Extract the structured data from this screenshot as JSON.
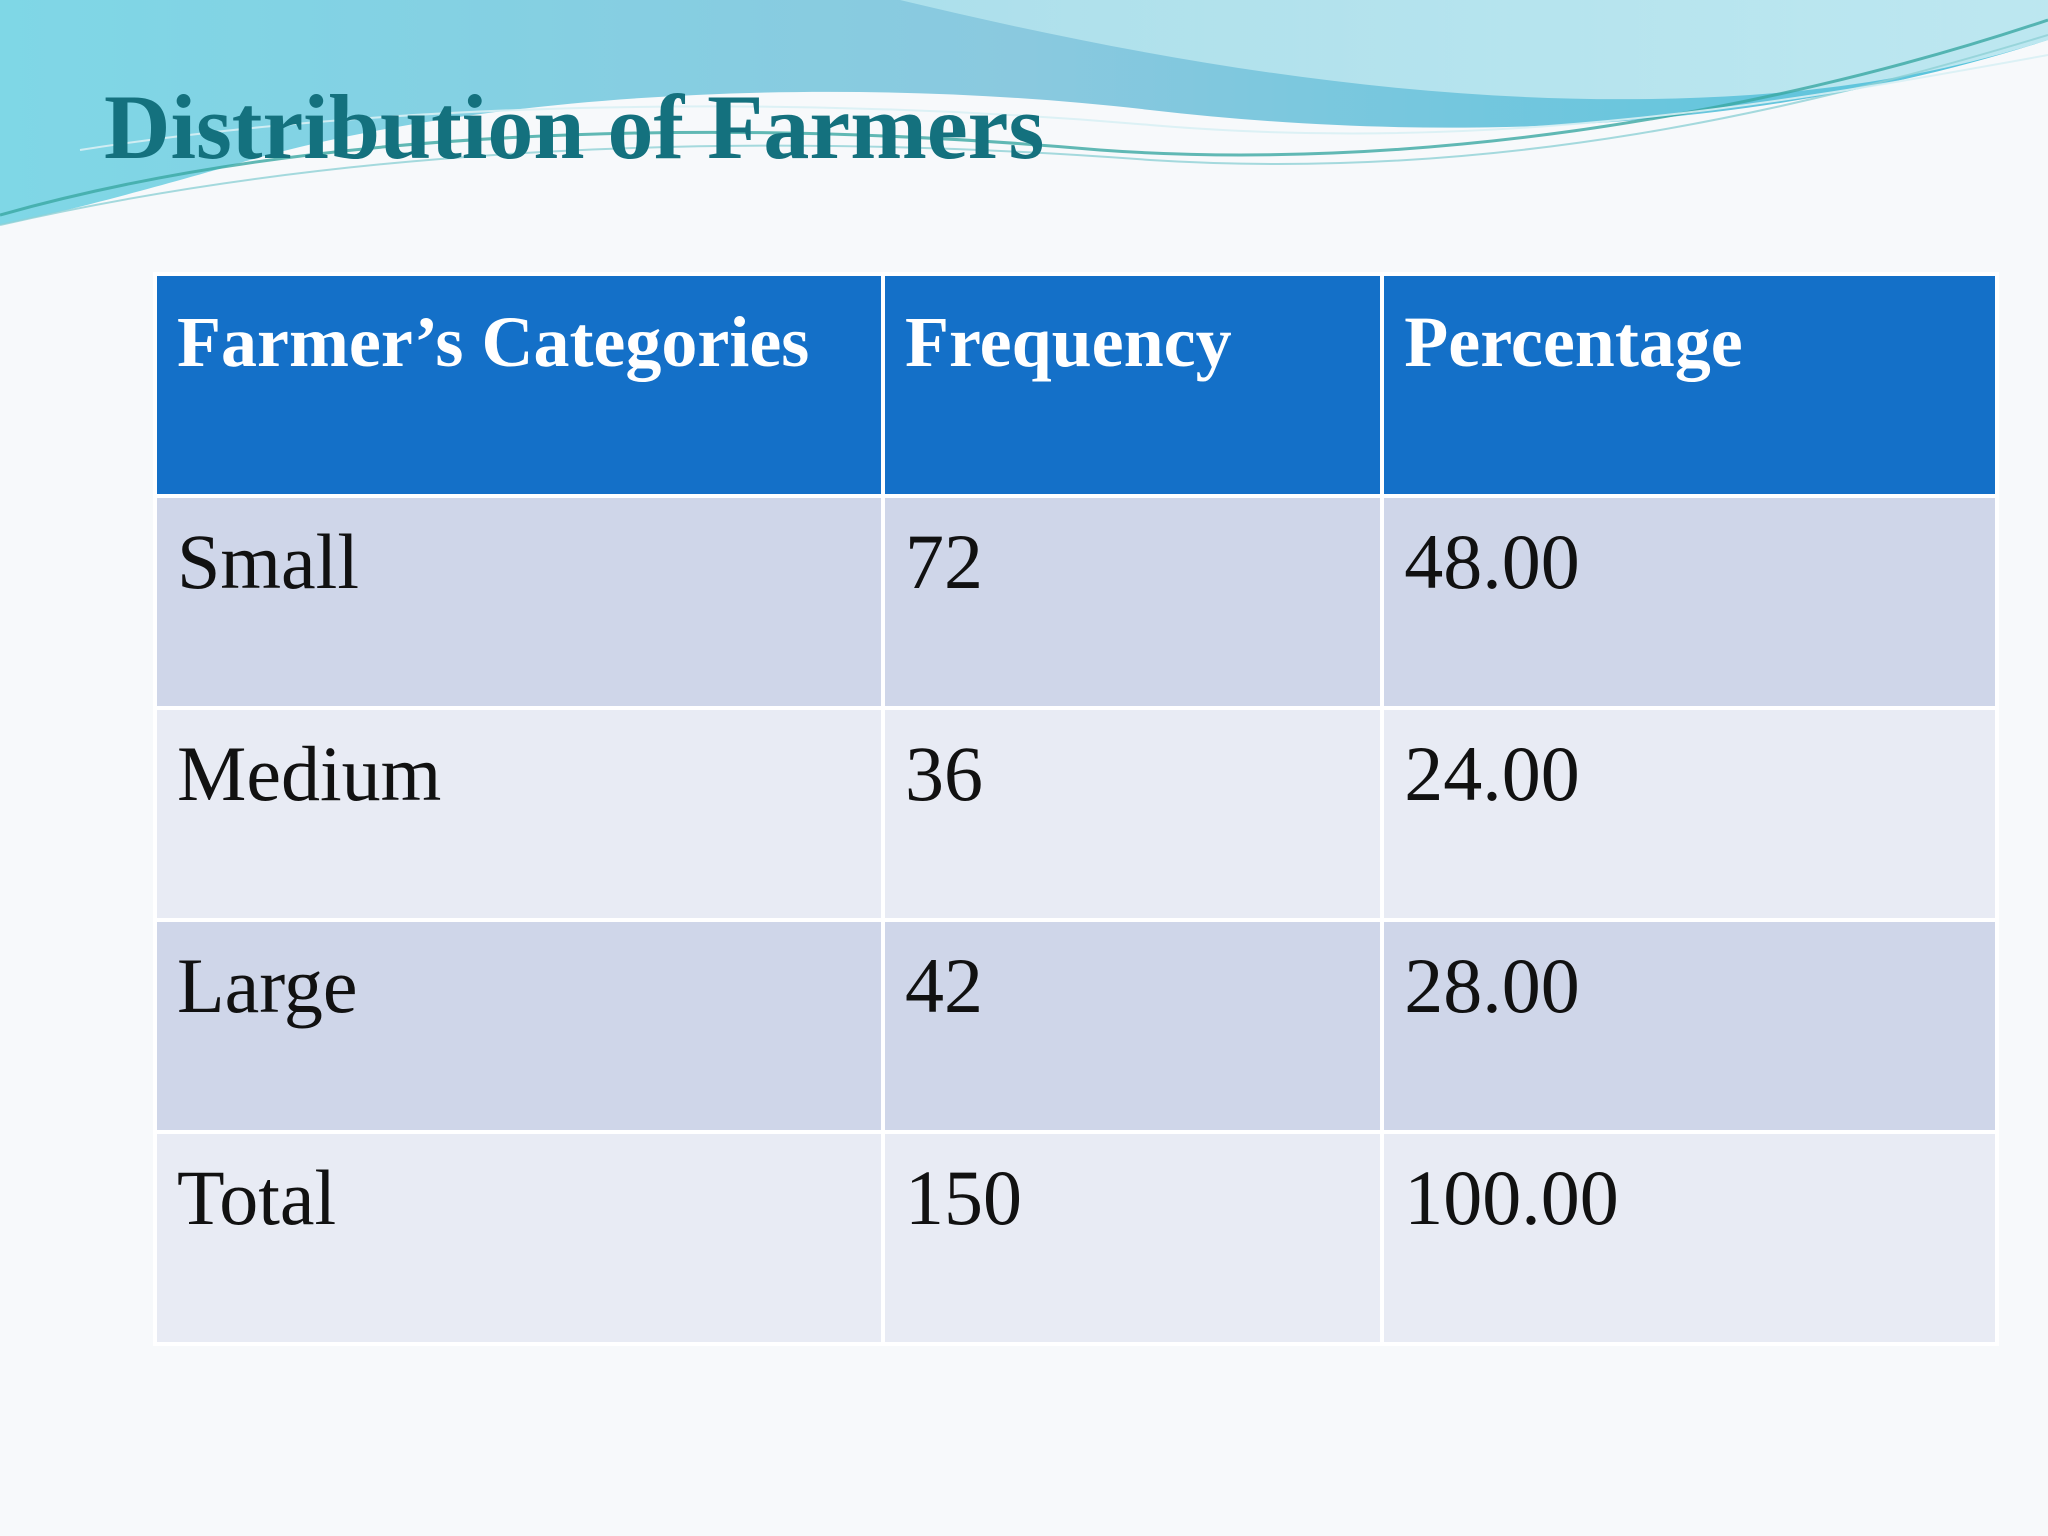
{
  "slide": {
    "title": "Distribution of Farmers"
  },
  "table": {
    "headers": [
      "Farmer’s Categories",
      "Frequency",
      "Percentage"
    ],
    "rows": [
      [
        "Small",
        "72",
        "48.00"
      ],
      [
        "Medium",
        "36",
        "24.00"
      ],
      [
        "Large",
        "42",
        "28.00"
      ],
      [
        "Total",
        "150",
        "100.00"
      ]
    ]
  },
  "colors": {
    "title": "#14717e",
    "header_bg": "#1470c8",
    "row_odd_bg": "#cfd6e9",
    "row_even_bg": "#e8ebf4",
    "wave_accent": "#4fc9de"
  }
}
